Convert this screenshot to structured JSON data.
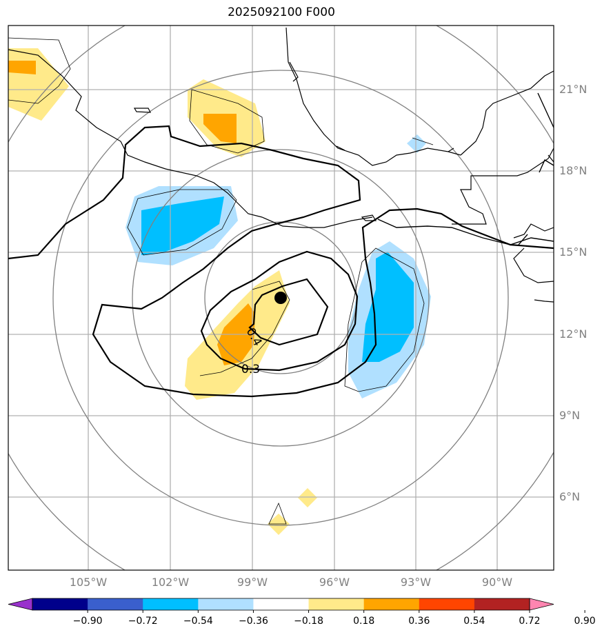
{
  "title": "2025092100 F000",
  "lat_labels": [
    "21°N",
    "18°N",
    "15°N",
    "12°N",
    "9°N",
    "6°N"
  ],
  "lon_labels": [
    "105°W",
    "102°W",
    "99°W",
    "96°W",
    "93°W",
    "90°W"
  ],
  "contour_labels": [
    "0.4",
    "0.3"
  ],
  "colorbar": {
    "colors": [
      "#9932cc",
      "#00008b",
      "#3a5fcd",
      "#00bfff",
      "#b0e0ff",
      "#ffffff",
      "#ffea8a",
      "#ffa500",
      "#ff4500",
      "#b22222",
      "#ff85b0"
    ],
    "labels": [
      "−0.90",
      "−0.72",
      "−0.54",
      "−0.36",
      "−0.18",
      "0.18",
      "0.36",
      "0.54",
      "0.72",
      "0.90"
    ]
  },
  "center_marker": "storm-center"
}
